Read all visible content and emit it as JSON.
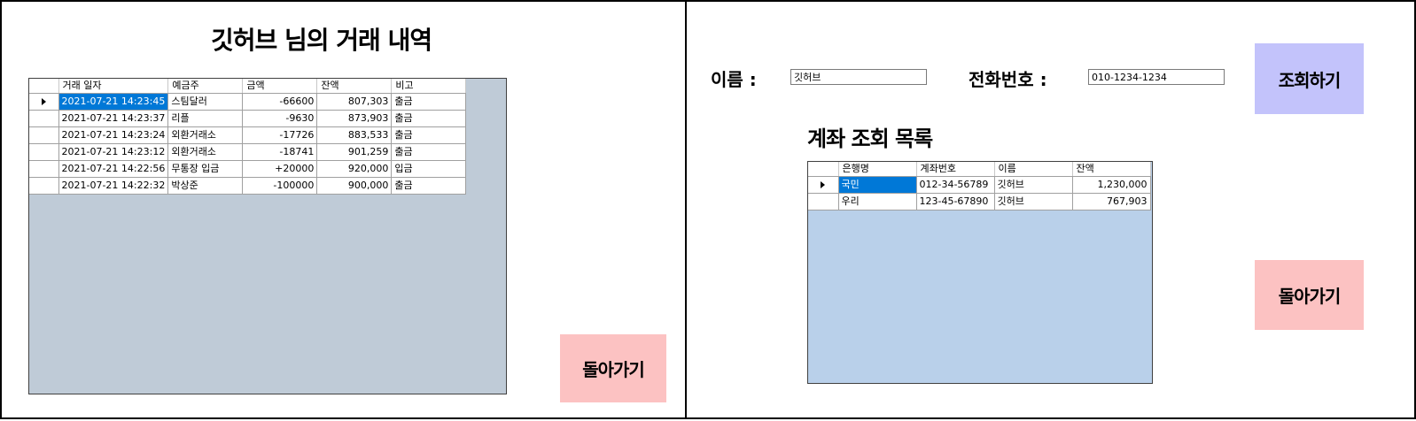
{
  "left": {
    "title": "깃허브 님의 거래 내역",
    "columns": [
      "거래 일자",
      "예금주",
      "금액",
      "잔액",
      "비고"
    ],
    "rows": [
      [
        "2021-07-21 14:23:45",
        "스팀달러",
        "-66600",
        "807,303",
        "출금"
      ],
      [
        "2021-07-21 14:23:37",
        "리플",
        "-9630",
        "873,903",
        "출금"
      ],
      [
        "2021-07-21 14:23:24",
        "외환거래소",
        "-17726",
        "883,533",
        "출금"
      ],
      [
        "2021-07-21 14:23:12",
        "외환거래소",
        "-18741",
        "901,259",
        "출금"
      ],
      [
        "2021-07-21 14:22:56",
        "무통장 입금",
        "+20000",
        "920,000",
        "입금"
      ],
      [
        "2021-07-21 14:22:32",
        "박상준",
        "-100000",
        "900,000",
        "출금"
      ]
    ],
    "back_button": "돌아가기"
  },
  "right": {
    "name_label": "이름 :",
    "name_value": "깃허브",
    "phone_label": "전화번호 :",
    "phone_value": "010-1234-1234",
    "search_button": "조회하기",
    "list_title": "계좌 조회 목록",
    "columns": [
      "은행명",
      "계좌번호",
      "이름",
      "잔액"
    ],
    "rows": [
      [
        "국민",
        "012-34-56789",
        "깃허브",
        "1,230,000"
      ],
      [
        "우리",
        "123-45-67890",
        "깃허브",
        "767,903"
      ]
    ],
    "back_button": "돌아가기"
  },
  "colors": {
    "grid_bg_left": "#bfcbd7",
    "grid_bg_right": "#b9d0ea",
    "selection": "#0078d7",
    "back_button": "#fcc2c2",
    "search_button": "#c3c3fb"
  }
}
